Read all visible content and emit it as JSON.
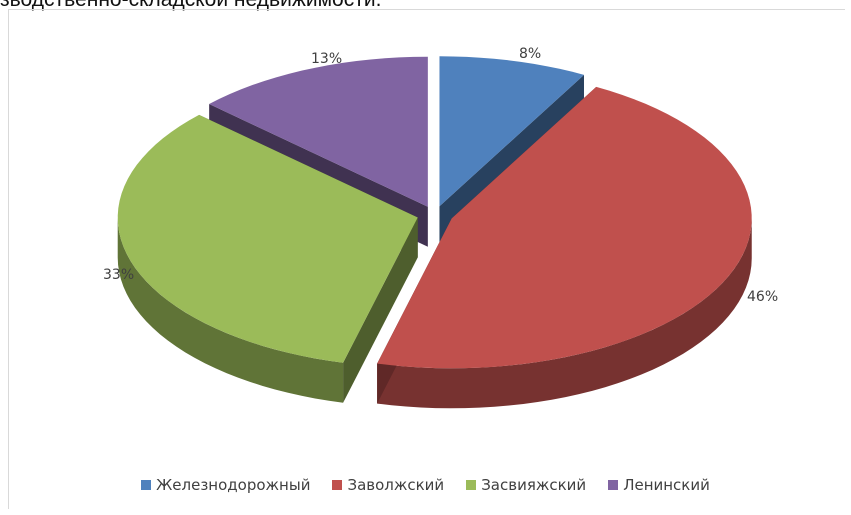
{
  "caption": "зводственно-складской недвижимости.",
  "chart_data": {
    "type": "pie",
    "title": "",
    "categories": [
      "Железнодорожный",
      "Заволжский",
      "Засвияжский",
      "Ленинский"
    ],
    "values": [
      8,
      46,
      33,
      13
    ],
    "labels": [
      "8%",
      "46%",
      "33%",
      "13%"
    ],
    "colors": [
      "#4F81BD",
      "#C0504D",
      "#9BBB59",
      "#8064A2"
    ],
    "style": "3d-exploded",
    "legend_position": "bottom"
  }
}
